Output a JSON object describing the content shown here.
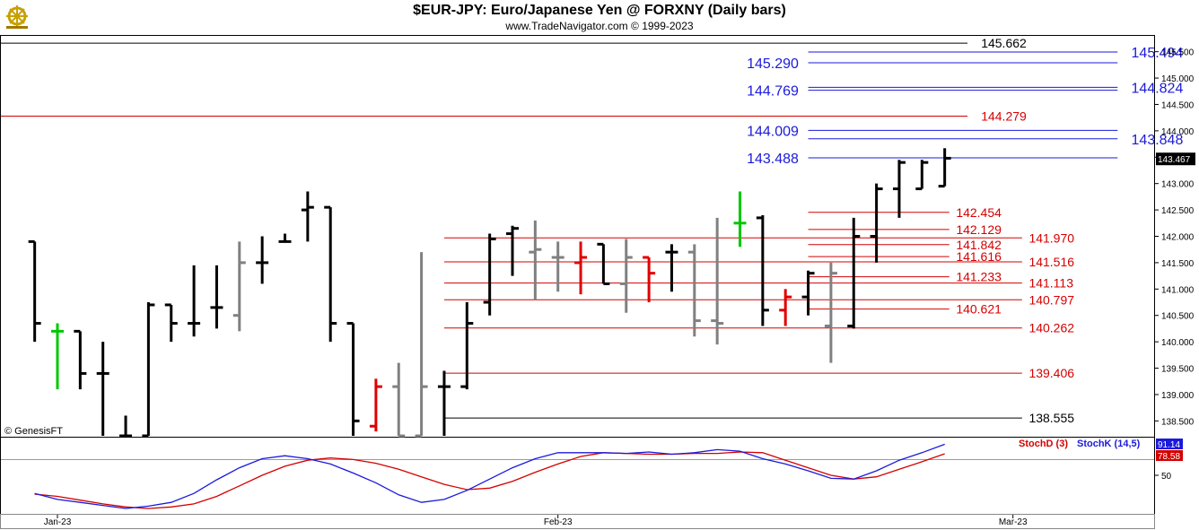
{
  "header": {
    "title": "$EUR-JPY:  Euro/Japanese Yen @ FORXNY  (Daily bars)",
    "subtitle": "www.TradeNavigator.com © 1999-2023",
    "watermark": "© GenesisFT",
    "logo_icon": "ship-wheel-logo-icon"
  },
  "colors": {
    "up_bar": "#000000",
    "neutral_bar": "#808080",
    "reversal_bar": "#e00000",
    "signal_bar": "#00c800",
    "blue_level": "#1a1adc",
    "red_level": "#d40000",
    "stoch_d": "#d40000",
    "stoch_k": "#1a1adc"
  },
  "chart_data": [
    {
      "type": "ohlc",
      "title": "$EUR-JPY:  Euro/Japanese Yen @ FORXNY  (Daily bars)",
      "ylim": [
        138.2,
        145.8
      ],
      "y_ticks": [
        "145.500",
        "145.000",
        "144.500",
        "144.000",
        "143.500",
        "143.000",
        "142.500",
        "142.000",
        "141.500",
        "141.000",
        "140.500",
        "140.000",
        "139.500",
        "139.000",
        "138.500"
      ],
      "last_price": "143.467",
      "x_labels": [
        {
          "label": "Jan-23",
          "day": 0
        },
        {
          "label": "Feb-23",
          "day": 22
        },
        {
          "label": "Mar-23",
          "day": 42
        }
      ],
      "bars": [
        {
          "day": -1,
          "o": 141.9,
          "h": 141.9,
          "l": 140.0,
          "c": 140.35,
          "color": "black"
        },
        {
          "day": 0,
          "o": 140.2,
          "h": 140.35,
          "l": 139.1,
          "c": 140.2,
          "color": "green"
        },
        {
          "day": 1,
          "o": 140.2,
          "h": 140.2,
          "l": 139.1,
          "c": 139.4,
          "color": "black"
        },
        {
          "day": 2,
          "o": 139.4,
          "h": 140.0,
          "l": 138.2,
          "c": 139.4,
          "color": "black"
        },
        {
          "day": 3,
          "o": 138.2,
          "h": 138.6,
          "l": 138.2,
          "c": 138.2,
          "color": "black"
        },
        {
          "day": 4,
          "o": 138.2,
          "h": 140.75,
          "l": 138.2,
          "c": 140.7,
          "color": "black"
        },
        {
          "day": 5,
          "o": 140.7,
          "h": 140.7,
          "l": 140.0,
          "c": 140.35,
          "color": "black"
        },
        {
          "day": 6,
          "o": 140.35,
          "h": 141.45,
          "l": 140.1,
          "c": 140.35,
          "color": "black"
        },
        {
          "day": 7,
          "o": 140.65,
          "h": 141.45,
          "l": 140.25,
          "c": 140.65,
          "color": "black"
        },
        {
          "day": 8,
          "o": 140.5,
          "h": 141.9,
          "l": 140.2,
          "c": 141.5,
          "color": "gray"
        },
        {
          "day": 9,
          "o": 141.5,
          "h": 142.0,
          "l": 141.1,
          "c": 141.5,
          "color": "black"
        },
        {
          "day": 10,
          "o": 141.9,
          "h": 142.05,
          "l": 141.9,
          "c": 141.9,
          "color": "black"
        },
        {
          "day": 11,
          "o": 142.5,
          "h": 142.85,
          "l": 141.9,
          "c": 142.55,
          "color": "black"
        },
        {
          "day": 12,
          "o": 142.55,
          "h": 142.55,
          "l": 140.0,
          "c": 140.35,
          "color": "black"
        },
        {
          "day": 13,
          "o": 140.35,
          "h": 140.35,
          "l": 138.2,
          "c": 138.5,
          "color": "black"
        },
        {
          "day": 14,
          "o": 138.4,
          "h": 139.3,
          "l": 138.3,
          "c": 139.15,
          "color": "red"
        },
        {
          "day": 15,
          "o": 139.15,
          "h": 139.6,
          "l": 138.2,
          "c": 138.2,
          "color": "gray"
        },
        {
          "day": 16,
          "o": 138.2,
          "h": 141.7,
          "l": 138.2,
          "c": 139.15,
          "color": "gray"
        },
        {
          "day": 17,
          "o": 139.15,
          "h": 139.45,
          "l": 138.2,
          "c": 139.15,
          "color": "black"
        },
        {
          "day": 18,
          "o": 139.15,
          "h": 140.75,
          "l": 139.1,
          "c": 140.35,
          "color": "black"
        },
        {
          "day": 19,
          "o": 140.75,
          "h": 142.05,
          "l": 140.5,
          "c": 141.95,
          "color": "black"
        },
        {
          "day": 20,
          "o": 142.05,
          "h": 142.2,
          "l": 141.25,
          "c": 142.15,
          "color": "black"
        },
        {
          "day": 21,
          "o": 141.7,
          "h": 142.3,
          "l": 140.8,
          "c": 141.75,
          "color": "gray"
        },
        {
          "day": 22,
          "o": 141.6,
          "h": 141.9,
          "l": 140.95,
          "c": 141.6,
          "color": "gray"
        },
        {
          "day": 23,
          "o": 141.5,
          "h": 141.9,
          "l": 140.9,
          "c": 141.6,
          "color": "red"
        },
        {
          "day": 24,
          "o": 141.85,
          "h": 141.85,
          "l": 141.1,
          "c": 141.1,
          "color": "black"
        },
        {
          "day": 25,
          "o": 141.1,
          "h": 141.95,
          "l": 140.55,
          "c": 141.6,
          "color": "gray"
        },
        {
          "day": 26,
          "o": 141.6,
          "h": 141.6,
          "l": 140.75,
          "c": 141.3,
          "color": "red"
        },
        {
          "day": 27,
          "o": 141.7,
          "h": 141.85,
          "l": 140.95,
          "c": 141.7,
          "color": "black"
        },
        {
          "day": 28,
          "o": 141.7,
          "h": 141.85,
          "l": 140.1,
          "c": 140.4,
          "color": "gray"
        },
        {
          "day": 29,
          "o": 140.4,
          "h": 142.35,
          "l": 139.95,
          "c": 140.35,
          "color": "gray"
        },
        {
          "day": 30,
          "o": 142.25,
          "h": 142.85,
          "l": 141.8,
          "c": 142.25,
          "color": "green"
        },
        {
          "day": 31,
          "o": 142.35,
          "h": 142.4,
          "l": 140.3,
          "c": 140.6,
          "color": "black"
        },
        {
          "day": 32,
          "o": 140.6,
          "h": 141.0,
          "l": 140.3,
          "c": 140.85,
          "color": "red"
        },
        {
          "day": 33,
          "o": 140.85,
          "h": 141.35,
          "l": 140.5,
          "c": 141.3,
          "color": "black"
        },
        {
          "day": 34,
          "o": 140.3,
          "h": 141.5,
          "l": 139.6,
          "c": 141.3,
          "color": "gray"
        },
        {
          "day": 35,
          "o": 140.3,
          "h": 142.35,
          "l": 140.25,
          "c": 142.0,
          "color": "black"
        },
        {
          "day": 36,
          "o": 142.0,
          "h": 143.0,
          "l": 141.5,
          "c": 142.9,
          "color": "black"
        },
        {
          "day": 37,
          "o": 142.9,
          "h": 143.45,
          "l": 142.35,
          "c": 143.4,
          "color": "black"
        },
        {
          "day": 38,
          "o": 142.9,
          "h": 143.45,
          "l": 142.9,
          "c": 143.4,
          "color": "black"
        },
        {
          "day": 39,
          "o": 142.95,
          "h": 143.67,
          "l": 142.95,
          "c": 143.48,
          "color": "black"
        }
      ],
      "levels": [
        {
          "value": 145.662,
          "label": "145.662",
          "color": "black",
          "day_from": -3,
          "day_to": 40,
          "label_day": 40.6
        },
        {
          "value": 145.494,
          "label": "145.494",
          "color": "blue",
          "day_from": 33,
          "day_to": 46.6,
          "label_day": 47.2
        },
        {
          "value": 145.29,
          "label": "145.290",
          "color": "blue",
          "day_from": 33,
          "day_to": 46.6,
          "label_day": 30.3
        },
        {
          "value": 144.824,
          "label": "144.824",
          "color": "blue",
          "day_from": 33,
          "day_to": 46.6,
          "label_day": 47.2
        },
        {
          "value": 144.769,
          "label": "144.769",
          "color": "blue",
          "day_from": 33,
          "day_to": 46.6,
          "label_day": 30.3
        },
        {
          "value": 144.279,
          "label": "144.279",
          "color": "red",
          "day_from": -3,
          "day_to": 40,
          "label_day": 40.6
        },
        {
          "value": 144.009,
          "label": "144.009",
          "color": "blue",
          "day_from": 33,
          "day_to": 46.6,
          "label_day": 30.3
        },
        {
          "value": 143.848,
          "label": "143.848",
          "color": "blue",
          "day_from": 33,
          "day_to": 46.6,
          "label_day": 47.2
        },
        {
          "value": 143.488,
          "label": "143.488",
          "color": "blue",
          "day_from": 33,
          "day_to": 46.6,
          "label_day": 30.3
        },
        {
          "value": 142.454,
          "label": "142.454",
          "color": "red",
          "day_from": 33,
          "day_to": 39.2,
          "label_day": 39.5
        },
        {
          "value": 142.129,
          "label": "142.129",
          "color": "red",
          "day_from": 33,
          "day_to": 39.2,
          "label_day": 39.5
        },
        {
          "value": 141.97,
          "label": "141.970",
          "color": "red",
          "day_from": 17,
          "day_to": 42.4,
          "label_day": 42.7
        },
        {
          "value": 141.842,
          "label": "141.842",
          "color": "red",
          "day_from": 33,
          "day_to": 39.2,
          "label_day": 39.5
        },
        {
          "value": 141.616,
          "label": "141.616",
          "color": "red",
          "day_from": 33,
          "day_to": 39.2,
          "label_day": 39.5
        },
        {
          "value": 141.516,
          "label": "141.516",
          "color": "red",
          "day_from": 17,
          "day_to": 42.4,
          "label_day": 42.7
        },
        {
          "value": 141.233,
          "label": "141.233",
          "color": "red",
          "day_from": 33,
          "day_to": 39.2,
          "label_day": 39.5
        },
        {
          "value": 141.113,
          "label": "141.113",
          "color": "red",
          "day_from": 17,
          "day_to": 42.4,
          "label_day": 42.7
        },
        {
          "value": 140.797,
          "label": "140.797",
          "color": "red",
          "day_from": 17,
          "day_to": 42.4,
          "label_day": 42.7
        },
        {
          "value": 140.621,
          "label": "140.621",
          "color": "red",
          "day_from": 33,
          "day_to": 39.2,
          "label_day": 39.5
        },
        {
          "value": 140.262,
          "label": "140.262",
          "color": "red",
          "day_from": 17,
          "day_to": 42.4,
          "label_day": 42.7
        },
        {
          "value": 139.406,
          "label": "139.406",
          "color": "red",
          "day_from": 17,
          "day_to": 42.4,
          "label_day": 42.7
        },
        {
          "value": 138.555,
          "label": "138.555",
          "color": "black",
          "day_from": 17,
          "day_to": 42.4,
          "label_day": 42.7
        }
      ]
    },
    {
      "type": "line",
      "title": "",
      "ylim": [
        0,
        100
      ],
      "y_ticks": [
        "50"
      ],
      "last_values": {
        "StochK (14,5)": "91.14",
        "StochD (3)": "78.58"
      },
      "series": [
        {
          "name": "StochD (3)",
          "color": "red",
          "values": [
            [
              -1,
              25
            ],
            [
              0,
              22
            ],
            [
              1,
              17
            ],
            [
              2,
              12
            ],
            [
              3,
              8
            ],
            [
              4,
              6
            ],
            [
              5,
              8
            ],
            [
              6,
              12
            ],
            [
              7,
              22
            ],
            [
              8,
              36
            ],
            [
              9,
              50
            ],
            [
              10,
              62
            ],
            [
              11,
              70
            ],
            [
              12,
              73
            ],
            [
              13,
              71
            ],
            [
              14,
              66
            ],
            [
              15,
              58
            ],
            [
              16,
              48
            ],
            [
              17,
              38
            ],
            [
              18,
              31
            ],
            [
              19,
              33
            ],
            [
              20,
              42
            ],
            [
              21,
              54
            ],
            [
              22,
              65
            ],
            [
              23,
              75
            ],
            [
              24,
              80
            ],
            [
              25,
              79
            ],
            [
              26,
              78
            ],
            [
              27,
              78
            ],
            [
              28,
              79
            ],
            [
              29,
              79
            ],
            [
              30,
              81
            ],
            [
              31,
              80
            ],
            [
              32,
              70
            ],
            [
              33,
              60
            ],
            [
              34,
              50
            ],
            [
              35,
              45
            ],
            [
              36,
              48
            ],
            [
              37,
              58
            ],
            [
              38,
              68
            ],
            [
              39,
              78.58
            ]
          ]
        },
        {
          "name": "StochK (14,5)",
          "color": "blue",
          "values": [
            [
              -1,
              26
            ],
            [
              0,
              18
            ],
            [
              1,
              14
            ],
            [
              2,
              10
            ],
            [
              3,
              6
            ],
            [
              4,
              9
            ],
            [
              5,
              14
            ],
            [
              6,
              26
            ],
            [
              7,
              44
            ],
            [
              8,
              60
            ],
            [
              9,
              72
            ],
            [
              10,
              76
            ],
            [
              11,
              72
            ],
            [
              12,
              65
            ],
            [
              13,
              53
            ],
            [
              14,
              40
            ],
            [
              15,
              24
            ],
            [
              16,
              14
            ],
            [
              17,
              18
            ],
            [
              18,
              30
            ],
            [
              19,
              45
            ],
            [
              20,
              60
            ],
            [
              21,
              72
            ],
            [
              22,
              80
            ],
            [
              23,
              80
            ],
            [
              24,
              80
            ],
            [
              25,
              79
            ],
            [
              26,
              81
            ],
            [
              27,
              78
            ],
            [
              28,
              80
            ],
            [
              29,
              84
            ],
            [
              30,
              82
            ],
            [
              31,
              72
            ],
            [
              32,
              65
            ],
            [
              33,
              56
            ],
            [
              34,
              46
            ],
            [
              35,
              45
            ],
            [
              36,
              56
            ],
            [
              37,
              70
            ],
            [
              38,
              80
            ],
            [
              39,
              91.14
            ]
          ]
        }
      ]
    }
  ]
}
